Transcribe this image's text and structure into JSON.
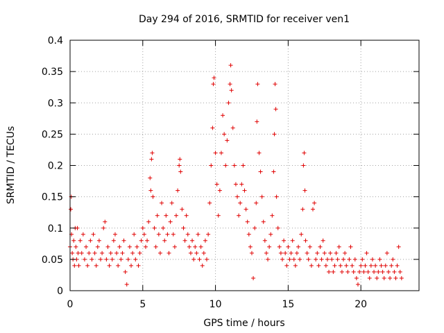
{
  "chart_data": {
    "type": "scatter",
    "title": "Day 294 of 2016, SRMTID for receiver ven1",
    "xlabel": "GPS time / hours",
    "ylabel": "SRMTID / TECUs",
    "xlim": [
      0,
      24
    ],
    "ylim": [
      0,
      0.4
    ],
    "xticks": [
      0,
      5,
      10,
      15,
      20
    ],
    "yticks": [
      0,
      0.05,
      0.1,
      0.15,
      0.2,
      0.25,
      0.3,
      0.35,
      0.4
    ],
    "xtick_labels": [
      "0",
      "5",
      "10",
      "15",
      "20"
    ],
    "ytick_labels": [
      "0",
      "0.05",
      "0.1",
      "0.15",
      "0.2",
      "0.25",
      "0.3",
      "0.35",
      "0.4"
    ],
    "grid": true,
    "marker": "+",
    "color": "#e00000",
    "series": [
      {
        "name": "SRMTID",
        "points": [
          [
            0.0,
            0.07
          ],
          [
            0.05,
            0.13
          ],
          [
            0.08,
            0.15
          ],
          [
            0.1,
            0.09
          ],
          [
            0.15,
            0.06
          ],
          [
            0.2,
            0.05
          ],
          [
            0.25,
            0.08
          ],
          [
            0.3,
            0.04
          ],
          [
            0.35,
            0.1
          ],
          [
            0.4,
            0.07
          ],
          [
            0.45,
            0.05
          ],
          [
            0.5,
            0.1
          ],
          [
            0.55,
            0.06
          ],
          [
            0.6,
            0.04
          ],
          [
            0.7,
            0.08
          ],
          [
            0.8,
            0.06
          ],
          [
            0.9,
            0.09
          ],
          [
            1.0,
            0.05
          ],
          [
            1.1,
            0.07
          ],
          [
            1.2,
            0.04
          ],
          [
            1.3,
            0.06
          ],
          [
            1.4,
            0.08
          ],
          [
            1.5,
            0.05
          ],
          [
            1.6,
            0.09
          ],
          [
            1.7,
            0.06
          ],
          [
            1.8,
            0.04
          ],
          [
            1.9,
            0.07
          ],
          [
            2.0,
            0.08
          ],
          [
            2.1,
            0.05
          ],
          [
            2.2,
            0.06
          ],
          [
            2.3,
            0.1
          ],
          [
            2.4,
            0.11
          ],
          [
            2.5,
            0.05
          ],
          [
            2.6,
            0.07
          ],
          [
            2.7,
            0.04
          ],
          [
            2.8,
            0.06
          ],
          [
            2.9,
            0.05
          ],
          [
            3.0,
            0.08
          ],
          [
            3.1,
            0.09
          ],
          [
            3.2,
            0.06
          ],
          [
            3.3,
            0.04
          ],
          [
            3.4,
            0.07
          ],
          [
            3.5,
            0.05
          ],
          [
            3.6,
            0.06
          ],
          [
            3.7,
            0.08
          ],
          [
            3.8,
            0.03
          ],
          [
            3.9,
            0.01
          ],
          [
            4.0,
            0.05
          ],
          [
            4.1,
            0.07
          ],
          [
            4.2,
            0.04
          ],
          [
            4.3,
            0.06
          ],
          [
            4.4,
            0.09
          ],
          [
            4.5,
            0.05
          ],
          [
            4.6,
            0.07
          ],
          [
            4.7,
            0.04
          ],
          [
            4.8,
            0.06
          ],
          [
            4.9,
            0.08
          ],
          [
            5.0,
            0.1
          ],
          [
            5.1,
            0.09
          ],
          [
            5.2,
            0.07
          ],
          [
            5.3,
            0.08
          ],
          [
            5.4,
            0.11
          ],
          [
            5.5,
            0.18
          ],
          [
            5.55,
            0.16
          ],
          [
            5.6,
            0.21
          ],
          [
            5.65,
            0.22
          ],
          [
            5.7,
            0.15
          ],
          [
            5.8,
            0.1
          ],
          [
            5.9,
            0.07
          ],
          [
            6.0,
            0.12
          ],
          [
            6.1,
            0.09
          ],
          [
            6.2,
            0.06
          ],
          [
            6.3,
            0.14
          ],
          [
            6.4,
            0.1
          ],
          [
            6.5,
            0.08
          ],
          [
            6.6,
            0.12
          ],
          [
            6.7,
            0.09
          ],
          [
            6.8,
            0.06
          ],
          [
            6.9,
            0.11
          ],
          [
            7.0,
            0.14
          ],
          [
            7.1,
            0.09
          ],
          [
            7.2,
            0.07
          ],
          [
            7.3,
            0.12
          ],
          [
            7.4,
            0.16
          ],
          [
            7.5,
            0.2
          ],
          [
            7.55,
            0.21
          ],
          [
            7.6,
            0.19
          ],
          [
            7.7,
            0.13
          ],
          [
            7.8,
            0.1
          ],
          [
            7.9,
            0.08
          ],
          [
            8.0,
            0.12
          ],
          [
            8.1,
            0.09
          ],
          [
            8.2,
            0.07
          ],
          [
            8.3,
            0.06
          ],
          [
            8.4,
            0.08
          ],
          [
            8.5,
            0.05
          ],
          [
            8.6,
            0.07
          ],
          [
            8.7,
            0.06
          ],
          [
            8.8,
            0.09
          ],
          [
            8.9,
            0.05
          ],
          [
            9.0,
            0.07
          ],
          [
            9.1,
            0.04
          ],
          [
            9.2,
            0.06
          ],
          [
            9.3,
            0.08
          ],
          [
            9.4,
            0.05
          ],
          [
            9.5,
            0.09
          ],
          [
            9.6,
            0.14
          ],
          [
            9.7,
            0.2
          ],
          [
            9.8,
            0.26
          ],
          [
            9.85,
            0.33
          ],
          [
            9.9,
            0.34
          ],
          [
            10.0,
            0.22
          ],
          [
            10.1,
            0.17
          ],
          [
            10.2,
            0.12
          ],
          [
            10.3,
            0.16
          ],
          [
            10.4,
            0.22
          ],
          [
            10.5,
            0.28
          ],
          [
            10.6,
            0.25
          ],
          [
            10.7,
            0.2
          ],
          [
            10.8,
            0.24
          ],
          [
            10.9,
            0.3
          ],
          [
            11.0,
            0.33
          ],
          [
            11.05,
            0.36
          ],
          [
            11.1,
            0.32
          ],
          [
            11.2,
            0.26
          ],
          [
            11.3,
            0.2
          ],
          [
            11.4,
            0.17
          ],
          [
            11.5,
            0.15
          ],
          [
            11.6,
            0.12
          ],
          [
            11.7,
            0.14
          ],
          [
            11.8,
            0.17
          ],
          [
            11.9,
            0.2
          ],
          [
            12.0,
            0.16
          ],
          [
            12.1,
            0.13
          ],
          [
            12.2,
            0.11
          ],
          [
            12.3,
            0.09
          ],
          [
            12.4,
            0.07
          ],
          [
            12.5,
            0.06
          ],
          [
            12.6,
            0.02
          ],
          [
            12.7,
            0.1
          ],
          [
            12.8,
            0.14
          ],
          [
            12.85,
            0.27
          ],
          [
            12.9,
            0.33
          ],
          [
            13.0,
            0.22
          ],
          [
            13.1,
            0.19
          ],
          [
            13.2,
            0.15
          ],
          [
            13.3,
            0.11
          ],
          [
            13.4,
            0.08
          ],
          [
            13.5,
            0.06
          ],
          [
            13.6,
            0.05
          ],
          [
            13.7,
            0.07
          ],
          [
            13.8,
            0.09
          ],
          [
            13.9,
            0.12
          ],
          [
            14.0,
            0.19
          ],
          [
            14.05,
            0.25
          ],
          [
            14.1,
            0.33
          ],
          [
            14.15,
            0.29
          ],
          [
            14.2,
            0.15
          ],
          [
            14.3,
            0.1
          ],
          [
            14.4,
            0.07
          ],
          [
            14.5,
            0.06
          ],
          [
            14.6,
            0.05
          ],
          [
            14.7,
            0.08
          ],
          [
            14.8,
            0.06
          ],
          [
            14.9,
            0.04
          ],
          [
            15.0,
            0.07
          ],
          [
            15.1,
            0.05
          ],
          [
            15.2,
            0.06
          ],
          [
            15.3,
            0.08
          ],
          [
            15.4,
            0.05
          ],
          [
            15.5,
            0.04
          ],
          [
            15.6,
            0.06
          ],
          [
            15.7,
            0.07
          ],
          [
            15.8,
            0.05
          ],
          [
            15.9,
            0.09
          ],
          [
            16.0,
            0.13
          ],
          [
            16.05,
            0.2
          ],
          [
            16.1,
            0.22
          ],
          [
            16.15,
            0.16
          ],
          [
            16.2,
            0.08
          ],
          [
            16.3,
            0.06
          ],
          [
            16.4,
            0.05
          ],
          [
            16.5,
            0.07
          ],
          [
            16.6,
            0.04
          ],
          [
            16.7,
            0.13
          ],
          [
            16.8,
            0.14
          ],
          [
            16.9,
            0.05
          ],
          [
            17.0,
            0.06
          ],
          [
            17.1,
            0.04
          ],
          [
            17.2,
            0.07
          ],
          [
            17.3,
            0.05
          ],
          [
            17.4,
            0.08
          ],
          [
            17.5,
            0.06
          ],
          [
            17.6,
            0.04
          ],
          [
            17.7,
            0.05
          ],
          [
            17.8,
            0.03
          ],
          [
            17.9,
            0.06
          ],
          [
            18.0,
            0.05
          ],
          [
            18.1,
            0.03
          ],
          [
            18.2,
            0.04
          ],
          [
            18.3,
            0.06
          ],
          [
            18.4,
            0.05
          ],
          [
            18.5,
            0.07
          ],
          [
            18.6,
            0.04
          ],
          [
            18.7,
            0.03
          ],
          [
            18.8,
            0.05
          ],
          [
            18.9,
            0.06
          ],
          [
            19.0,
            0.04
          ],
          [
            19.1,
            0.03
          ],
          [
            19.2,
            0.05
          ],
          [
            19.3,
            0.07
          ],
          [
            19.4,
            0.04
          ],
          [
            19.5,
            0.03
          ],
          [
            19.6,
            0.05
          ],
          [
            19.7,
            0.02
          ],
          [
            19.8,
            0.01
          ],
          [
            19.9,
            0.03
          ],
          [
            20.0,
            0.04
          ],
          [
            20.1,
            0.05
          ],
          [
            20.2,
            0.03
          ],
          [
            20.3,
            0.04
          ],
          [
            20.4,
            0.06
          ],
          [
            20.5,
            0.03
          ],
          [
            20.6,
            0.02
          ],
          [
            20.7,
            0.04
          ],
          [
            20.8,
            0.05
          ],
          [
            20.9,
            0.03
          ],
          [
            21.0,
            0.04
          ],
          [
            21.1,
            0.02
          ],
          [
            21.2,
            0.03
          ],
          [
            21.3,
            0.05
          ],
          [
            21.4,
            0.04
          ],
          [
            21.5,
            0.03
          ],
          [
            21.6,
            0.02
          ],
          [
            21.7,
            0.04
          ],
          [
            21.8,
            0.06
          ],
          [
            21.9,
            0.03
          ],
          [
            22.0,
            0.02
          ],
          [
            22.1,
            0.04
          ],
          [
            22.2,
            0.05
          ],
          [
            22.3,
            0.03
          ],
          [
            22.4,
            0.02
          ],
          [
            22.5,
            0.04
          ],
          [
            22.6,
            0.07
          ],
          [
            22.7,
            0.03
          ],
          [
            22.8,
            0.02
          ]
        ]
      }
    ]
  }
}
